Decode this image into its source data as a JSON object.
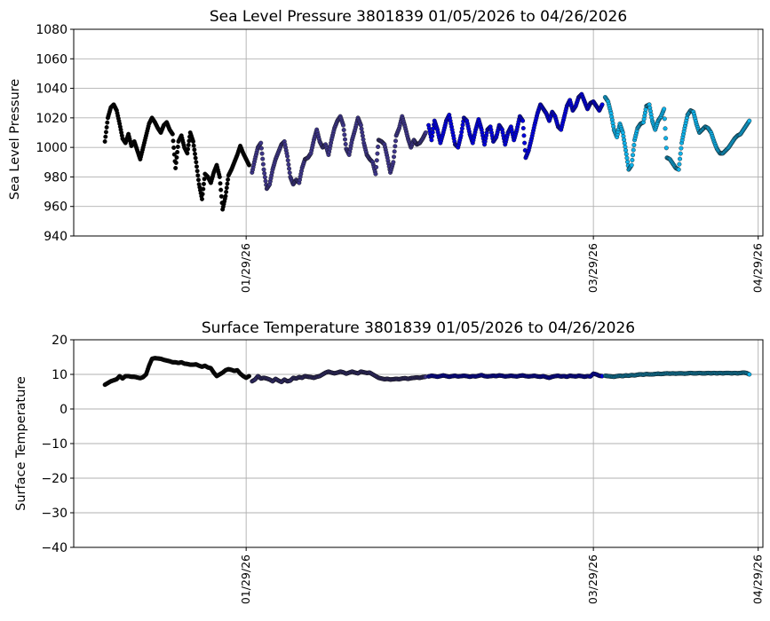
{
  "colors": {
    "period1": "#000000",
    "period2": "#3d3588",
    "period3": "#0000dd",
    "period4": "#0fb2ea",
    "marker_edge": "#111111",
    "grid": "#b0b0b0"
  },
  "chart_data": [
    {
      "type": "scatter",
      "title": "Sea Level Pressure 3801839  01/05/2026 to 04/26/2026",
      "xlabel": "",
      "ylabel": "Sea Level Pressure",
      "ylim": [
        940,
        1080
      ],
      "yticks": [
        940,
        960,
        980,
        1000,
        1020,
        1040,
        1060,
        1080
      ],
      "xlim": [
        -5.3,
        111.8
      ],
      "xtick_days": [
        24,
        83,
        111
      ],
      "xtick_labels": [
        "01/29/26",
        "03/29/26",
        "04/29/26"
      ],
      "grid": true,
      "series": [
        {
          "name": "period1",
          "color_key": "period1",
          "x": [
            0.0,
            0.5,
            1.0,
            1.5,
            2.0,
            2.5,
            3.0,
            3.5,
            4.0,
            4.5,
            5.0,
            5.5,
            6.0,
            6.5,
            7.0,
            7.5,
            8.0,
            8.5,
            9.0,
            9.5,
            10.0,
            10.5,
            11.0,
            11.5,
            12.0,
            12.5,
            13.0,
            13.5,
            14.0,
            14.5,
            15.0,
            15.5,
            16.0,
            16.5,
            17.0,
            17.5,
            18.0,
            18.5,
            19.0,
            19.5,
            20.0,
            20.5,
            21.0,
            21.5,
            22.0,
            22.5,
            23.0,
            23.5,
            24.0,
            24.5
          ],
          "y": [
            1004,
            1020,
            1027,
            1029,
            1025,
            1016,
            1006,
            1003,
            1009,
            1001,
            1004,
            998,
            992,
            1000,
            1008,
            1016,
            1020,
            1017,
            1013,
            1010,
            1015,
            1017,
            1012,
            1009,
            986,
            1004,
            1008,
            1000,
            996,
            1010,
            1004,
            990,
            975,
            965,
            982,
            980,
            976,
            983,
            988,
            980,
            958,
            967,
            981,
            985,
            990,
            995,
            1001,
            996,
            992,
            988
          ]
        },
        {
          "name": "period2",
          "color_key": "period2",
          "x": [
            25.0,
            25.5,
            26.0,
            26.5,
            27.0,
            27.5,
            28.0,
            28.5,
            29.0,
            29.5,
            30.0,
            30.5,
            31.0,
            31.5,
            32.0,
            32.5,
            33.0,
            33.5,
            34.0,
            34.5,
            35.0,
            35.5,
            36.0,
            36.5,
            37.0,
            37.5,
            38.0,
            38.5,
            39.0,
            39.5,
            40.0,
            40.5,
            41.0,
            41.5,
            42.0,
            42.5,
            43.0,
            43.5,
            44.0,
            44.5,
            45.0,
            45.5,
            46.0,
            46.5,
            47.0,
            47.5,
            48.0,
            48.5,
            49.0,
            49.5,
            50.0,
            50.5,
            51.0,
            51.5,
            52.0,
            52.5,
            53.0,
            53.5,
            54.0,
            54.5
          ],
          "y": [
            983,
            992,
            1000,
            1003,
            985,
            972,
            975,
            985,
            992,
            997,
            1002,
            1004,
            994,
            980,
            975,
            978,
            976,
            986,
            992,
            993,
            996,
            1005,
            1012,
            1004,
            1000,
            1002,
            995,
            1005,
            1013,
            1018,
            1021,
            1015,
            999,
            995,
            1005,
            1012,
            1020,
            1015,
            1003,
            995,
            992,
            990,
            982,
            1005,
            1004,
            1002,
            993,
            983,
            990,
            1008,
            1013,
            1021,
            1014,
            1006,
            1000,
            1005,
            1002,
            1003,
            1006,
            1010
          ]
        },
        {
          "name": "period3",
          "color_key": "period3",
          "x": [
            55.0,
            55.5,
            56.0,
            56.5,
            57.0,
            57.5,
            58.0,
            58.5,
            59.0,
            59.5,
            60.0,
            60.5,
            61.0,
            61.5,
            62.0,
            62.5,
            63.0,
            63.5,
            64.0,
            64.5,
            65.0,
            65.5,
            66.0,
            66.5,
            67.0,
            67.5,
            68.0,
            68.5,
            69.0,
            69.5,
            70.0,
            70.5,
            71.0,
            71.5,
            72.0,
            72.5,
            73.0,
            73.5,
            74.0,
            74.5,
            75.0,
            75.5,
            76.0,
            76.5,
            77.0,
            77.5,
            78.0,
            78.5,
            79.0,
            79.5,
            80.0,
            80.5,
            81.0,
            81.5,
            82.0,
            82.5,
            83.0,
            83.5,
            84.0,
            84.5
          ],
          "y": [
            1015,
            1005,
            1018,
            1012,
            1003,
            1010,
            1018,
            1022,
            1012,
            1002,
            1000,
            1008,
            1020,
            1018,
            1009,
            1003,
            1012,
            1019,
            1012,
            1002,
            1012,
            1014,
            1004,
            1007,
            1015,
            1012,
            1002,
            1010,
            1014,
            1005,
            1012,
            1021,
            1018,
            993,
            998,
            1006,
            1015,
            1023,
            1029,
            1026,
            1023,
            1018,
            1024,
            1021,
            1014,
            1012,
            1020,
            1028,
            1032,
            1025,
            1028,
            1034,
            1036,
            1031,
            1026,
            1030,
            1031,
            1028,
            1025,
            1029
          ]
        },
        {
          "name": "period4",
          "color_key": "period4",
          "x": [
            85.0,
            85.5,
            86.0,
            86.5,
            87.0,
            87.5,
            88.0,
            88.5,
            89.0,
            89.5,
            90.0,
            90.5,
            91.0,
            91.5,
            92.0,
            92.5,
            93.0,
            93.5,
            94.0,
            94.5,
            95.0,
            95.5,
            96.0,
            96.5,
            97.0,
            97.5,
            98.0,
            98.5,
            99.0,
            99.5,
            100.0,
            100.5,
            101.0,
            101.5,
            102.0,
            102.5,
            103.0,
            103.5,
            104.0,
            104.5,
            105.0,
            105.5,
            106.0,
            106.5,
            107.0,
            107.5,
            108.0,
            108.5,
            109.0,
            109.5
          ],
          "y": [
            1034,
            1031,
            1023,
            1012,
            1007,
            1016,
            1010,
            998,
            985,
            988,
            1005,
            1013,
            1016,
            1017,
            1028,
            1029,
            1018,
            1012,
            1018,
            1021,
            1026,
            993,
            992,
            989,
            986,
            985,
            1003,
            1013,
            1022,
            1025,
            1024,
            1016,
            1010,
            1012,
            1014,
            1013,
            1010,
            1004,
            999,
            996,
            996,
            998,
            1000,
            1003,
            1006,
            1008,
            1009,
            1012,
            1015,
            1018
          ]
        }
      ]
    },
    {
      "type": "scatter",
      "title": "Surface Temperature 3801839  01/05/2026 to 04/26/2026",
      "xlabel": "",
      "ylabel": "Surface Temperature",
      "ylim": [
        -40,
        20
      ],
      "yticks": [
        -40,
        -30,
        -20,
        -10,
        0,
        10,
        20
      ],
      "ytick_labels": [
        "−40",
        "−30",
        "−20",
        "−10",
        "0",
        "10",
        "20"
      ],
      "xlim": [
        -5.3,
        111.8
      ],
      "xtick_days": [
        24,
        83,
        111
      ],
      "xtick_labels": [
        "01/29/26",
        "03/29/26",
        "04/29/26"
      ],
      "grid": true,
      "series": [
        {
          "name": "period1",
          "color_key": "period1",
          "x": [
            0.0,
            0.5,
            1.0,
            1.5,
            2.0,
            2.5,
            3.0,
            3.5,
            4.0,
            4.5,
            5.0,
            5.5,
            6.0,
            6.5,
            7.0,
            7.5,
            8.0,
            8.5,
            9.0,
            9.5,
            10.0,
            10.5,
            11.0,
            11.5,
            12.0,
            12.5,
            13.0,
            13.5,
            14.0,
            14.5,
            15.0,
            15.5,
            16.0,
            16.5,
            17.0,
            17.5,
            18.0,
            18.5,
            19.0,
            19.5,
            20.0,
            20.5,
            21.0,
            21.5,
            22.0,
            22.5,
            23.0,
            23.5,
            24.0,
            24.5
          ],
          "y": [
            7.0,
            7.5,
            8.0,
            8.3,
            8.6,
            9.5,
            8.8,
            9.5,
            9.5,
            9.3,
            9.3,
            9.1,
            8.9,
            9.2,
            10.0,
            12.5,
            14.5,
            14.7,
            14.6,
            14.5,
            14.2,
            14.0,
            13.8,
            13.5,
            13.5,
            13.3,
            13.5,
            13.1,
            13.0,
            12.8,
            12.8,
            12.9,
            12.5,
            12.2,
            12.5,
            12.0,
            11.8,
            10.5,
            9.5,
            10.0,
            10.5,
            11.2,
            11.5,
            11.3,
            11.0,
            11.2,
            10.2,
            9.5,
            9.0,
            9.5
          ]
        },
        {
          "name": "period2",
          "color_key": "period2",
          "x": [
            25.0,
            25.5,
            26.0,
            26.5,
            27.0,
            27.5,
            28.0,
            28.5,
            29.0,
            29.5,
            30.0,
            30.5,
            31.0,
            31.5,
            32.0,
            32.5,
            33.0,
            33.5,
            34.0,
            34.5,
            35.0,
            35.5,
            36.0,
            36.5,
            37.0,
            37.5,
            38.0,
            38.5,
            39.0,
            39.5,
            40.0,
            40.5,
            41.0,
            41.5,
            42.0,
            42.5,
            43.0,
            43.5,
            44.0,
            44.5,
            45.0,
            45.5,
            46.0,
            46.5,
            47.0,
            47.5,
            48.0,
            48.5,
            49.0,
            49.5,
            50.0,
            50.5,
            51.0,
            51.5,
            52.0,
            52.5,
            53.0,
            53.5,
            54.0,
            54.5
          ],
          "y": [
            8.0,
            8.5,
            9.5,
            8.8,
            9.0,
            8.8,
            8.5,
            8.0,
            8.7,
            8.2,
            7.8,
            8.5,
            8.0,
            8.2,
            9.0,
            8.8,
            9.2,
            9.0,
            9.5,
            9.3,
            9.2,
            9.0,
            9.3,
            9.5,
            10.0,
            10.5,
            10.8,
            10.5,
            10.3,
            10.5,
            10.8,
            10.6,
            10.2,
            10.5,
            10.8,
            10.5,
            10.3,
            10.8,
            10.6,
            10.4,
            10.5,
            10.0,
            9.5,
            9.0,
            8.8,
            8.6,
            8.7,
            8.5,
            8.6,
            8.7,
            8.6,
            8.8,
            8.9,
            8.7,
            8.9,
            9.0,
            9.1,
            9.0,
            9.2,
            9.3
          ]
        },
        {
          "name": "period3",
          "color_key": "period3",
          "x": [
            55.0,
            55.5,
            56.0,
            56.5,
            57.0,
            57.5,
            58.0,
            58.5,
            59.0,
            59.5,
            60.0,
            60.5,
            61.0,
            61.5,
            62.0,
            62.5,
            63.0,
            63.5,
            64.0,
            64.5,
            65.0,
            65.5,
            66.0,
            66.5,
            67.0,
            67.5,
            68.0,
            68.5,
            69.0,
            69.5,
            70.0,
            70.5,
            71.0,
            71.5,
            72.0,
            72.5,
            73.0,
            73.5,
            74.0,
            74.5,
            75.0,
            75.5,
            76.0,
            76.5,
            77.0,
            77.5,
            78.0,
            78.5,
            79.0,
            79.5,
            80.0,
            80.5,
            81.0,
            81.5,
            82.0,
            82.5,
            83.0,
            83.5,
            84.0,
            84.5
          ],
          "y": [
            9.4,
            9.6,
            9.5,
            9.3,
            9.5,
            9.7,
            9.5,
            9.3,
            9.5,
            9.6,
            9.4,
            9.5,
            9.6,
            9.5,
            9.3,
            9.5,
            9.4,
            9.6,
            9.8,
            9.5,
            9.4,
            9.5,
            9.6,
            9.5,
            9.7,
            9.6,
            9.4,
            9.5,
            9.6,
            9.5,
            9.4,
            9.6,
            9.7,
            9.5,
            9.4,
            9.5,
            9.6,
            9.4,
            9.3,
            9.5,
            9.2,
            9.0,
            9.3,
            9.5,
            9.6,
            9.4,
            9.5,
            9.3,
            9.6,
            9.5,
            9.4,
            9.6,
            9.5,
            9.3,
            9.5,
            9.4,
            10.2,
            10.0,
            9.6,
            9.5
          ]
        },
        {
          "name": "period4",
          "color_key": "period4",
          "x": [
            85.0,
            85.5,
            86.0,
            86.5,
            87.0,
            87.5,
            88.0,
            88.5,
            89.0,
            89.5,
            90.0,
            90.5,
            91.0,
            91.5,
            92.0,
            92.5,
            93.0,
            93.5,
            94.0,
            94.5,
            95.0,
            95.5,
            96.0,
            96.5,
            97.0,
            97.5,
            98.0,
            98.5,
            99.0,
            99.5,
            100.0,
            100.5,
            101.0,
            101.5,
            102.0,
            102.5,
            103.0,
            103.5,
            104.0,
            104.5,
            105.0,
            105.5,
            106.0,
            106.5,
            107.0,
            107.5,
            108.0,
            108.5,
            109.0,
            109.5
          ],
          "y": [
            9.6,
            9.5,
            9.4,
            9.3,
            9.5,
            9.6,
            9.5,
            9.7,
            9.6,
            9.8,
            9.7,
            9.9,
            10.0,
            9.9,
            10.1,
            10.0,
            10.0,
            10.1,
            10.2,
            10.1,
            10.2,
            10.3,
            10.2,
            10.3,
            10.2,
            10.3,
            10.3,
            10.2,
            10.3,
            10.4,
            10.3,
            10.3,
            10.4,
            10.3,
            10.3,
            10.4,
            10.3,
            10.4,
            10.3,
            10.4,
            10.3,
            10.4,
            10.4,
            10.3,
            10.4,
            10.3,
            10.4,
            10.5,
            10.4,
            10.0
          ]
        }
      ]
    }
  ]
}
